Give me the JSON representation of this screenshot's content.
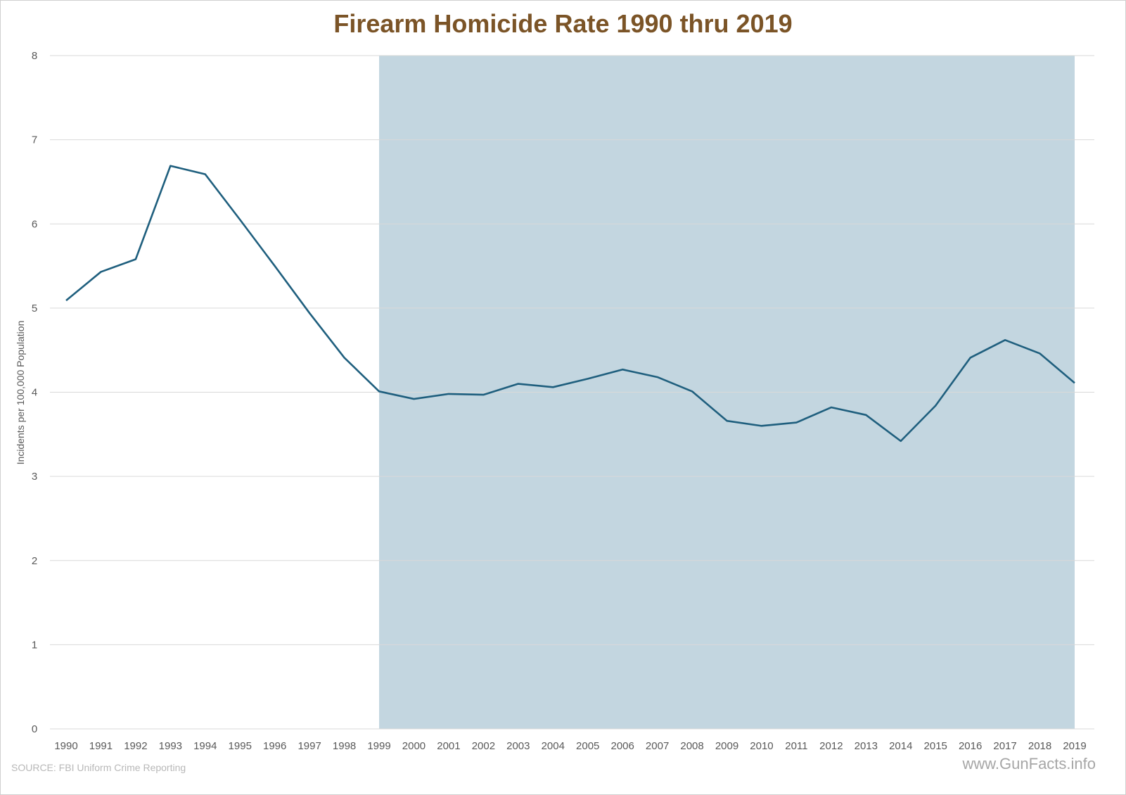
{
  "chart_data": {
    "type": "line",
    "title": "Firearm Homicide Rate 1990 thru 2019",
    "xlabel": "",
    "ylabel": "Incidents per 100,000 Population",
    "ylim": [
      0,
      8
    ],
    "yticks": [
      "0",
      "1",
      "2",
      "3",
      "4",
      "5",
      "6",
      "7",
      "8"
    ],
    "grid": true,
    "categories": [
      "1990",
      "1991",
      "1992",
      "1993",
      "1994",
      "1995",
      "1996",
      "1997",
      "1998",
      "1999",
      "2000",
      "2001",
      "2002",
      "2003",
      "2004",
      "2005",
      "2006",
      "2007",
      "2008",
      "2009",
      "2010",
      "2011",
      "2012",
      "2013",
      "2014",
      "2015",
      "2016",
      "2017",
      "2018",
      "2019"
    ],
    "series": [
      {
        "name": "Firearm Homicide Rate",
        "color": "#1f5f7e",
        "values": [
          5.09,
          5.43,
          5.58,
          6.69,
          6.59,
          6.05,
          5.5,
          4.94,
          4.41,
          4.01,
          3.92,
          3.98,
          3.97,
          4.1,
          4.06,
          4.16,
          4.27,
          4.18,
          4.01,
          3.66,
          3.6,
          3.64,
          3.82,
          3.73,
          3.42,
          3.84,
          4.41,
          4.62,
          4.46,
          4.11
        ]
      }
    ],
    "highlight_range": {
      "from": "1999",
      "to": "2019",
      "color": "#c3d6e0"
    }
  },
  "footer": {
    "source": "SOURCE: FBI Uniform Crime Reporting",
    "brand": "www.GunFacts.info"
  }
}
